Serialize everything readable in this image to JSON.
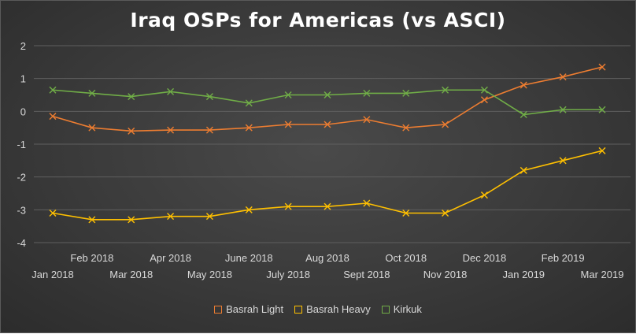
{
  "chart_data": {
    "type": "line",
    "title": "Iraq OSPs for Americas (vs ASCI)",
    "categories": [
      "Jan 2018",
      "Feb 2018",
      "Mar 2018",
      "Apr 2018",
      "May 2018",
      "June 2018",
      "July 2018",
      "Aug 2018",
      "Sept 2018",
      "Oct 2018",
      "Nov 2018",
      "Dec 2018",
      "Jan 2019",
      "Feb 2019",
      "Mar 2019"
    ],
    "ylim": [
      -4,
      2
    ],
    "yticks": [
      2,
      1,
      0,
      -1,
      -2,
      -3,
      -4
    ],
    "grid": true,
    "legend_position": "bottom",
    "series": [
      {
        "name": "Basrah Light",
        "color": "#ED7D31",
        "values": [
          -0.15,
          -0.5,
          -0.6,
          -0.57,
          -0.57,
          -0.5,
          -0.4,
          -0.4,
          -0.25,
          -0.5,
          -0.4,
          0.35,
          0.8,
          1.05,
          1.35
        ]
      },
      {
        "name": "Basrah Heavy",
        "color": "#FFC000",
        "values": [
          -3.1,
          -3.3,
          -3.3,
          -3.2,
          -3.2,
          -3.0,
          -2.9,
          -2.9,
          -2.8,
          -3.1,
          -3.1,
          -2.55,
          -1.8,
          -1.5,
          -1.2
        ]
      },
      {
        "name": "Kirkuk",
        "color": "#70AD47",
        "values": [
          0.65,
          0.55,
          0.45,
          0.6,
          0.45,
          0.25,
          0.5,
          0.5,
          0.55,
          0.55,
          0.65,
          0.65,
          -0.1,
          0.05,
          0.05
        ]
      }
    ]
  }
}
